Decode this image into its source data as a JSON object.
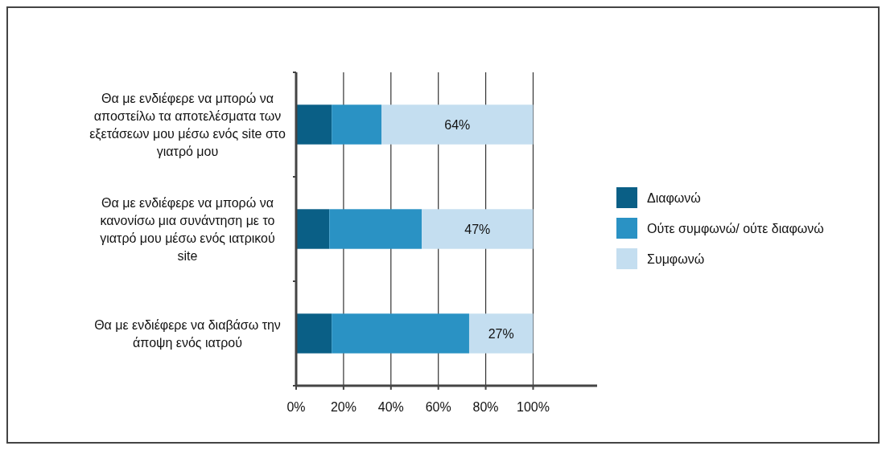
{
  "chart_data": {
    "type": "bar",
    "orientation": "horizontal",
    "stacked": true,
    "categories": [
      "Θα με ενδιέφερε να μπορώ να αποστείλω τα αποτελέσματα των εξετάσεων μου μέσω ενός site στο γιατρό μου",
      "Θα με ενδιέφερε να μπορώ να κανονίσω μια συνάντηση με το γιατρό μου μέσω ενός ιατρικού site",
      "Θα με ενδιέφερε να διαβάσω την άποψη ενός ιατρού"
    ],
    "series": [
      {
        "name": "Διαφωνώ",
        "color": "#0a5f86",
        "values": [
          15,
          14,
          15
        ]
      },
      {
        "name": "Ούτε συμφωνώ/ ούτε διαφωνώ",
        "color": "#2a92c4",
        "values": [
          21,
          39,
          58
        ]
      },
      {
        "name": "Συμφωνώ",
        "color": "#c4def0",
        "values": [
          64,
          47,
          27
        ],
        "value_labels": [
          "64%",
          "47%",
          "27%"
        ]
      }
    ],
    "xlim": [
      0,
      127
    ],
    "xticks": [
      {
        "value": 0,
        "label": "0%"
      },
      {
        "value": 20,
        "label": "20%"
      },
      {
        "value": 40,
        "label": "40%"
      },
      {
        "value": 60,
        "label": "60%"
      },
      {
        "value": 80,
        "label": "80%"
      },
      {
        "value": 100,
        "label": "100%"
      }
    ],
    "grid": "x",
    "legend": "right"
  }
}
